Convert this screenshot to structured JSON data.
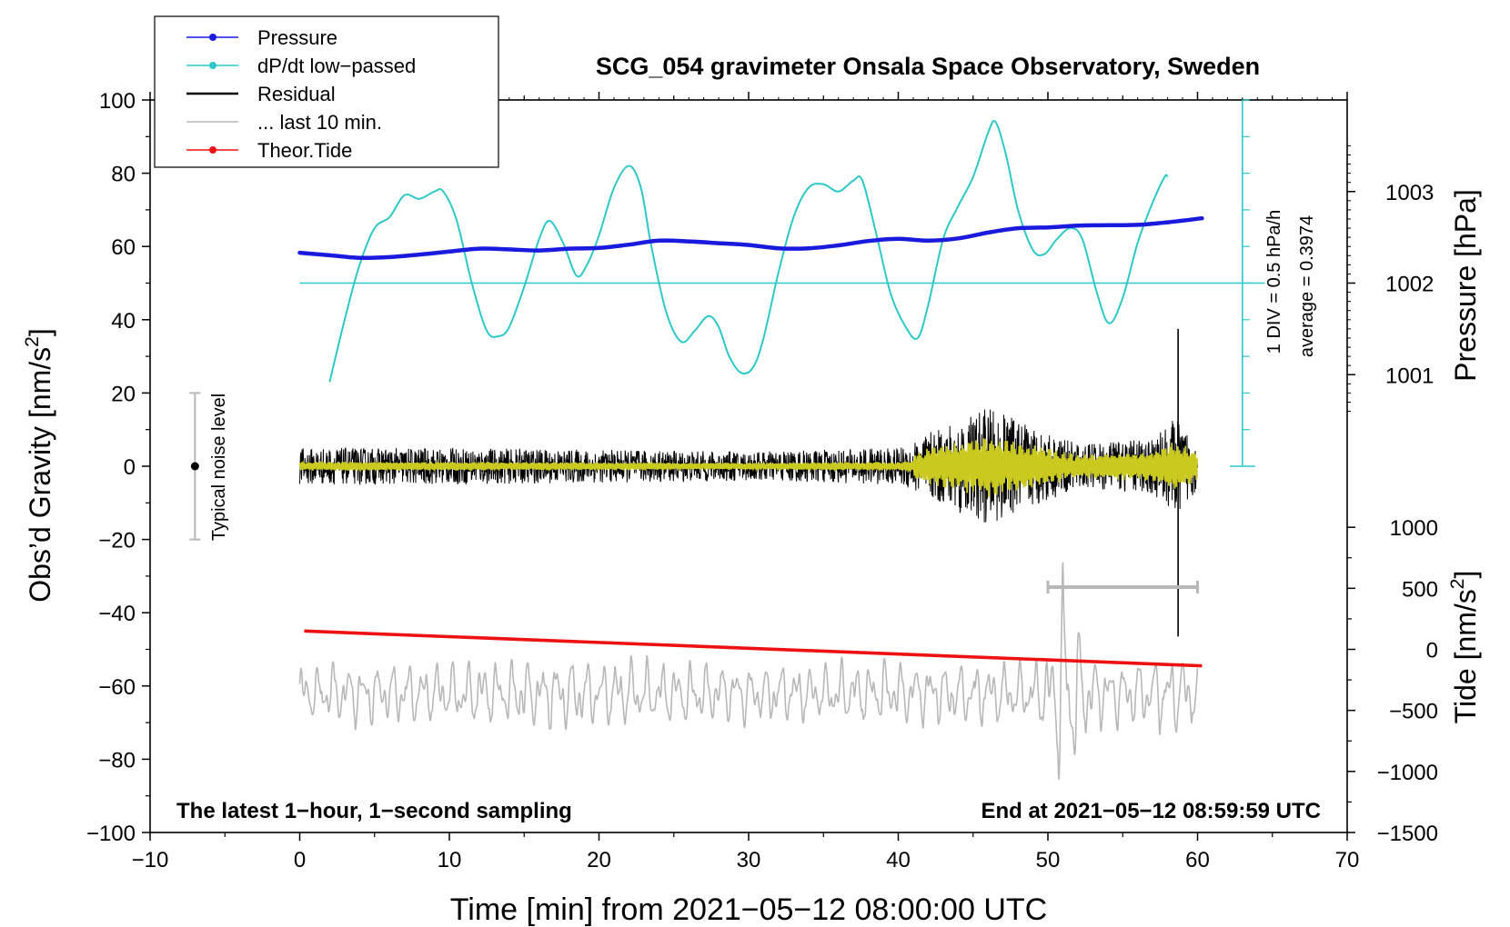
{
  "chart_data": {
    "type": "line",
    "title": "SCG_054 gravimeter Onsala Space Observatory, Sweden",
    "xlabel": "Time [min] from 2021−05−12 08:00:00 UTC",
    "ylabel_main": "Obs’d Gravity [nm/s",
    "ylabel_sup": "2",
    "ylabel_close": "]",
    "ylabel_pressure": "Pressure [hPa]",
    "ylabel_tide_main": "Tide [nm/s",
    "ylabel_tide_sup": "2",
    "ylabel_tide_close": "]",
    "xlim": [
      -10,
      70
    ],
    "ylim": [
      -100,
      100
    ],
    "x_ticks": [
      "−10",
      "0",
      "10",
      "20",
      "30",
      "40",
      "50",
      "60",
      "70"
    ],
    "x_tick_values": [
      -10,
      0,
      10,
      20,
      30,
      40,
      50,
      60,
      70
    ],
    "y_ticks": [
      "100",
      "80",
      "60",
      "40",
      "20",
      "0",
      "−20",
      "−40",
      "−60",
      "−80",
      "−100"
    ],
    "y_tick_values": [
      100,
      80,
      60,
      40,
      20,
      0,
      -20,
      -40,
      -60,
      -80,
      -100
    ],
    "pressure_ticks": [
      "1003",
      "1002",
      "1001"
    ],
    "pressure_tick_values": [
      1003,
      1002,
      1001
    ],
    "pressure_axis_map": {
      "hpa_at_gravity_50": 1002,
      "gravity_per_hpa": 25
    },
    "tide_ticks": [
      "1000",
      "500",
      "0",
      "−500",
      "−1000",
      "−1500"
    ],
    "tide_tick_values": [
      1000,
      500,
      0,
      -500,
      -1000,
      -1500
    ],
    "tide_axis_map": {
      "gravity_at_tide_0": -50,
      "gravity_per_tide_unit": 0.03333
    },
    "annotation_left": "The latest 1−hour, 1−second sampling",
    "annotation_right": "End at 2021−05−12 08:59:59 UTC",
    "noise_label": "Typical noise level",
    "noise_bar": {
      "x": -7,
      "center": 0,
      "half_range": 20
    },
    "dpdt_scale_label": "1 DIV = 0.5 hPa/h",
    "dpdt_average_label": "average = 0.3974",
    "dpdt_baseline": 50,
    "dpdt_scale_bar": {
      "x": 63,
      "from": 0,
      "to": 100,
      "div": 10
    },
    "last10_bracket": {
      "x_from": 50,
      "x_to": 60,
      "y": -33
    },
    "legend": [
      {
        "label": "Pressure",
        "color": "#1a1adf",
        "marker": true
      },
      {
        "label": "dP/dt low−passed",
        "color": "#2ec8c8",
        "marker": true
      },
      {
        "label": "Residual",
        "color": "#000000",
        "marker": false
      },
      {
        "label": "... last 10 min.",
        "color": "#b8b8b8",
        "marker": false
      },
      {
        "label": "Theor.Tide",
        "color": "#ee1111",
        "marker": true
      }
    ],
    "colors": {
      "pressure": "#1a1adf",
      "dpdt": "#2ec8c8",
      "residual": "#000000",
      "residual_filtered": "#c9c920",
      "last10": "#b8b8b8",
      "tide": "#ee1111",
      "noise": "#b8b8b8"
    },
    "series": [
      {
        "name": "Pressure",
        "x": [
          0,
          2,
          4,
          6,
          8,
          10,
          12,
          14,
          16,
          18,
          20,
          22,
          24,
          26,
          28,
          30,
          32,
          34,
          36,
          38,
          40,
          42,
          44,
          46,
          48,
          50,
          52,
          54,
          56,
          58,
          60.3
        ],
        "y": [
          58.3,
          57.6,
          56.9,
          57.1,
          57.8,
          58.6,
          59.4,
          59.2,
          58.9,
          59.4,
          59.6,
          60.5,
          61.6,
          61.4,
          60.9,
          60.4,
          59.5,
          59.5,
          60.3,
          61.5,
          62.1,
          61.6,
          62.2,
          63.8,
          65.0,
          65.2,
          65.7,
          65.8,
          65.9,
          66.6,
          67.7
        ]
      },
      {
        "name": "dP/dt low−passed",
        "x": [
          2,
          3,
          4,
          5,
          6,
          7,
          8,
          9,
          9.6,
          10.5,
          11.5,
          12.5,
          13.3,
          14,
          15,
          16,
          16.7,
          17.6,
          18.5,
          19.2,
          20,
          21,
          22,
          22.8,
          23.5,
          24.5,
          25.5,
          26.4,
          27.3,
          28,
          28.7,
          29.5,
          30.3,
          31,
          32,
          33,
          34,
          35,
          36,
          37,
          37.6,
          38.5,
          39.5,
          40.5,
          41.3,
          42,
          43,
          44,
          45,
          46,
          46.5,
          47.2,
          48,
          49,
          49.8,
          50.6,
          51.5,
          52.3,
          53.3,
          54.1,
          55,
          56,
          57,
          57.8,
          58
        ],
        "y": [
          23,
          40,
          55,
          65,
          68,
          74,
          73,
          75,
          75,
          67,
          50,
          37,
          35.5,
          38,
          49,
          62,
          67,
          61,
          52,
          55,
          63,
          76,
          82,
          76,
          60,
          42,
          34,
          37,
          41,
          38,
          30,
          25.5,
          27,
          35,
          53,
          68,
          76,
          77,
          75,
          78,
          78,
          64,
          47,
          38,
          35,
          44,
          62,
          71,
          79,
          91,
          94,
          85,
          70,
          59,
          58,
          62,
          65,
          62,
          47,
          39,
          46,
          61,
          72,
          79,
          79
        ]
      },
      {
        "name": "Theor.Tide",
        "x": [
          0.3,
          60.3
        ],
        "y": [
          -45,
          -54.5
        ]
      },
      {
        "name": "Residual",
        "x": [
          0,
          10,
          20,
          30,
          40,
          43,
          46,
          49,
          52,
          55,
          57,
          58.5,
          59.5,
          60
        ],
        "y": [
          0,
          0,
          0,
          0,
          0,
          0,
          0,
          0,
          0,
          0,
          0,
          0,
          0,
          0
        ],
        "envelope": [
          5,
          5,
          4.5,
          4,
          5,
          11,
          16,
          11,
          6,
          7,
          8,
          13,
          9,
          7
        ],
        "spike": {
          "x": 58.7,
          "y_max": 37.5,
          "y_min": -46.5
        }
      },
      {
        "name": "... last 10 min.",
        "x": [
          0,
          10,
          20,
          30,
          40,
          45,
          49,
          50.5,
          51.2,
          52,
          53,
          55,
          58,
          59,
          60
        ],
        "y": [
          -62,
          -62,
          -62,
          -62,
          -62,
          -62,
          -62,
          -62,
          -62,
          -62,
          -62,
          -62,
          -62,
          -62,
          -62
        ],
        "envelope": [
          8,
          9,
          10,
          8,
          9,
          9,
          8,
          15,
          45,
          20,
          10,
          9,
          11,
          12,
          9
        ]
      }
    ]
  }
}
